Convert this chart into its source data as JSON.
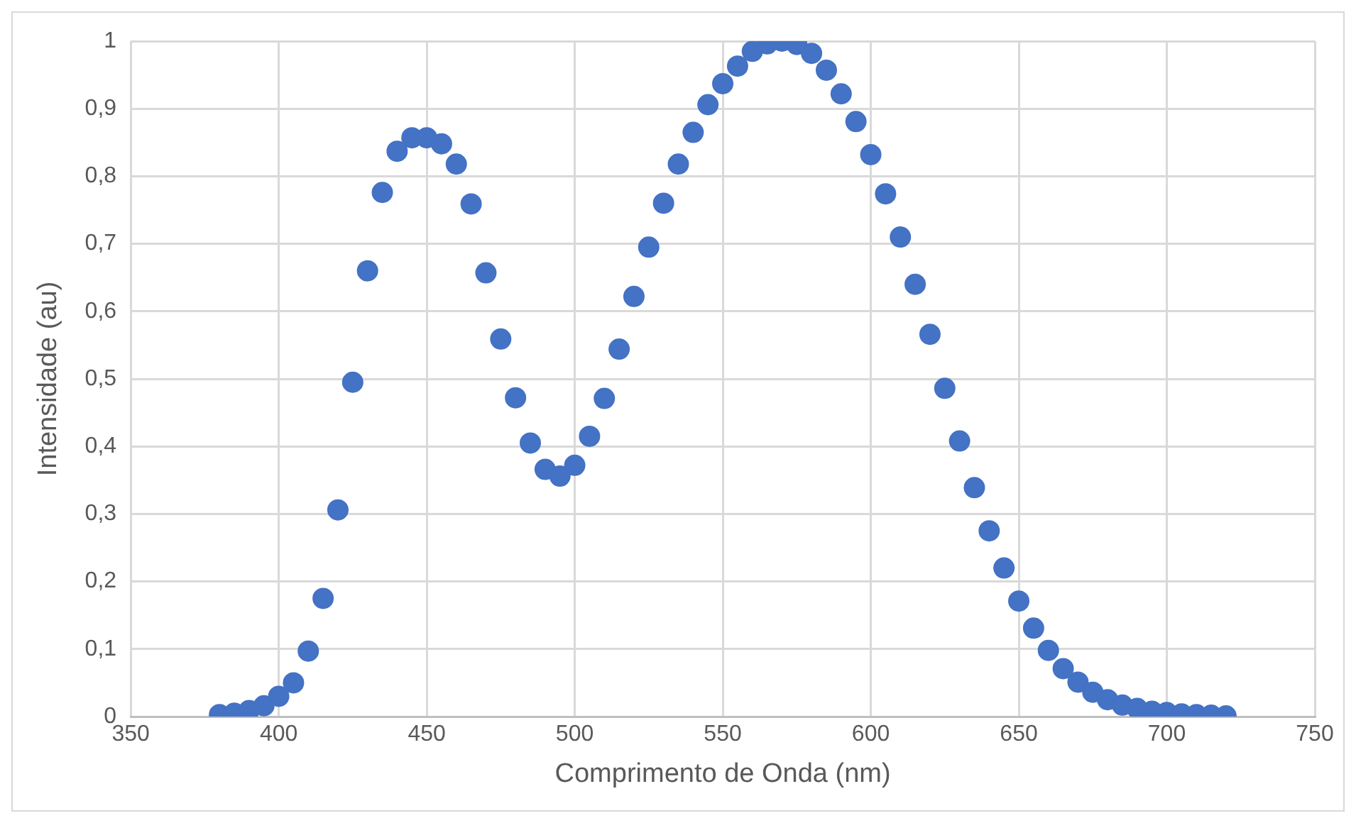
{
  "chart_data": {
    "type": "scatter",
    "xlabel": "Comprimento de Onda (nm)",
    "ylabel": "Intensidade (au)",
    "x": [
      380,
      385,
      390,
      395,
      400,
      405,
      410,
      415,
      420,
      425,
      430,
      435,
      440,
      445,
      450,
      455,
      460,
      465,
      470,
      475,
      480,
      485,
      490,
      495,
      500,
      505,
      510,
      515,
      520,
      525,
      530,
      535,
      540,
      545,
      550,
      555,
      560,
      565,
      570,
      575,
      580,
      585,
      590,
      595,
      600,
      605,
      610,
      615,
      620,
      625,
      630,
      635,
      640,
      645,
      650,
      655,
      660,
      665,
      670,
      675,
      680,
      685,
      690,
      695,
      700,
      705,
      710,
      715,
      720
    ],
    "series": [
      {
        "color": "#4472c4",
        "values": [
          0.003,
          0.005,
          0.009,
          0.016,
          0.03,
          0.05,
          0.097,
          0.175,
          0.306,
          0.495,
          0.66,
          0.776,
          0.837,
          0.857,
          0.857,
          0.848,
          0.818,
          0.759,
          0.657,
          0.559,
          0.472,
          0.405,
          0.366,
          0.356,
          0.372,
          0.415,
          0.471,
          0.544,
          0.622,
          0.695,
          0.76,
          0.818,
          0.865,
          0.906,
          0.937,
          0.963,
          0.985,
          0.996,
          1.0,
          0.995,
          0.982,
          0.957,
          0.922,
          0.881,
          0.832,
          0.774,
          0.71,
          0.64,
          0.566,
          0.486,
          0.408,
          0.339,
          0.275,
          0.22,
          0.171,
          0.131,
          0.098,
          0.071,
          0.051,
          0.036,
          0.025,
          0.017,
          0.012,
          0.008,
          0.006,
          0.004,
          0.003,
          0.002,
          0.001
        ]
      }
    ],
    "xlim": [
      350,
      750
    ],
    "xticks": [
      350,
      400,
      450,
      500,
      550,
      600,
      650,
      700,
      750
    ],
    "ylim": [
      0,
      1
    ],
    "yticks": [
      0,
      {
        "value": 0.1,
        "label": "0,1"
      },
      {
        "value": 0.2,
        "label": "0,2"
      },
      {
        "value": 0.3,
        "label": "0,3"
      },
      {
        "value": 0.4,
        "label": "0,4"
      },
      {
        "value": 0.5,
        "label": "0,5"
      },
      {
        "value": 0.6,
        "label": "0,6"
      },
      {
        "value": 0.7,
        "label": "0,7"
      },
      {
        "value": 0.8,
        "label": "0,8"
      },
      {
        "value": 0.9,
        "label": "0,9"
      },
      1
    ],
    "grid": true,
    "legend": false,
    "marker": "circle"
  }
}
